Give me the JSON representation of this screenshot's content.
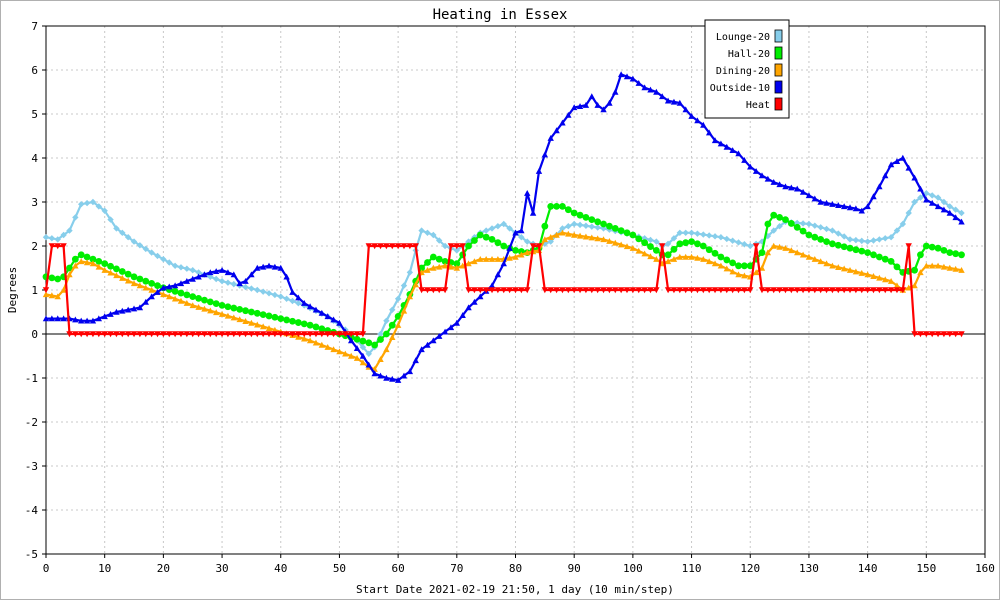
{
  "chart_data": {
    "type": "line",
    "title": "Heating in Essex",
    "xlabel": "Start Date 2021-02-19 21:50, 1 day (10 min/step)",
    "ylabel": "Degrees",
    "xlim": [
      0,
      160
    ],
    "ylim": [
      -5,
      7
    ],
    "x_ticks": [
      "0",
      "10",
      "20",
      "30",
      "40",
      "50",
      "60",
      "70",
      "80",
      "90",
      "100",
      "110",
      "120",
      "130",
      "140",
      "150",
      "160"
    ],
    "y_ticks": [
      "-5",
      "-4",
      "-3",
      "-2",
      "-1",
      "0",
      "1",
      "2",
      "3",
      "4",
      "5",
      "6",
      "7"
    ],
    "grid": true,
    "legend_position": "top-right",
    "series": [
      {
        "name": "Lounge-20",
        "color": "#87ceeb",
        "marker": "diamond",
        "points": [
          [
            0,
            2.2
          ],
          [
            2,
            2.15
          ],
          [
            4,
            2.35
          ],
          [
            6,
            2.95
          ],
          [
            8,
            3.0
          ],
          [
            10,
            2.8
          ],
          [
            12,
            2.4
          ],
          [
            15,
            2.1
          ],
          [
            18,
            1.85
          ],
          [
            20,
            1.7
          ],
          [
            22,
            1.55
          ],
          [
            25,
            1.45
          ],
          [
            28,
            1.3
          ],
          [
            30,
            1.2
          ],
          [
            33,
            1.1
          ],
          [
            36,
            1.0
          ],
          [
            40,
            0.85
          ],
          [
            44,
            0.65
          ],
          [
            48,
            0.4
          ],
          [
            50,
            0.2
          ],
          [
            52,
            0.0
          ],
          [
            54,
            -0.3
          ],
          [
            55,
            -0.45
          ],
          [
            56,
            -0.3
          ],
          [
            58,
            0.3
          ],
          [
            60,
            0.8
          ],
          [
            62,
            1.4
          ],
          [
            63,
            1.9
          ],
          [
            64,
            2.35
          ],
          [
            66,
            2.25
          ],
          [
            68,
            2.0
          ],
          [
            70,
            1.9
          ],
          [
            72,
            2.1
          ],
          [
            74,
            2.3
          ],
          [
            76,
            2.4
          ],
          [
            78,
            2.5
          ],
          [
            80,
            2.3
          ],
          [
            82,
            2.1
          ],
          [
            84,
            2.0
          ],
          [
            86,
            2.1
          ],
          [
            88,
            2.4
          ],
          [
            90,
            2.5
          ],
          [
            95,
            2.4
          ],
          [
            100,
            2.25
          ],
          [
            104,
            2.1
          ],
          [
            105,
            2.0
          ],
          [
            106,
            2.05
          ],
          [
            108,
            2.3
          ],
          [
            110,
            2.3
          ],
          [
            115,
            2.2
          ],
          [
            120,
            2.0
          ],
          [
            122,
            2.1
          ],
          [
            124,
            2.35
          ],
          [
            126,
            2.55
          ],
          [
            130,
            2.5
          ],
          [
            134,
            2.35
          ],
          [
            137,
            2.15
          ],
          [
            140,
            2.1
          ],
          [
            144,
            2.2
          ],
          [
            146,
            2.5
          ],
          [
            148,
            3.0
          ],
          [
            150,
            3.2
          ],
          [
            152,
            3.1
          ],
          [
            154,
            2.9
          ],
          [
            156,
            2.75
          ]
        ]
      },
      {
        "name": "Hall-20",
        "color": "#00ee00",
        "marker": "circle",
        "points": [
          [
            0,
            1.3
          ],
          [
            2,
            1.25
          ],
          [
            3,
            1.3
          ],
          [
            4,
            1.5
          ],
          [
            5,
            1.7
          ],
          [
            6,
            1.8
          ],
          [
            8,
            1.7
          ],
          [
            10,
            1.6
          ],
          [
            15,
            1.3
          ],
          [
            20,
            1.05
          ],
          [
            25,
            0.85
          ],
          [
            30,
            0.65
          ],
          [
            35,
            0.5
          ],
          [
            40,
            0.35
          ],
          [
            45,
            0.2
          ],
          [
            50,
            0.0
          ],
          [
            55,
            -0.2
          ],
          [
            56,
            -0.25
          ],
          [
            58,
            0.0
          ],
          [
            60,
            0.4
          ],
          [
            62,
            0.9
          ],
          [
            64,
            1.5
          ],
          [
            66,
            1.75
          ],
          [
            68,
            1.65
          ],
          [
            70,
            1.6
          ],
          [
            72,
            2.0
          ],
          [
            74,
            2.25
          ],
          [
            76,
            2.15
          ],
          [
            78,
            2.0
          ],
          [
            80,
            1.9
          ],
          [
            82,
            1.85
          ],
          [
            84,
            1.95
          ],
          [
            85,
            2.45
          ],
          [
            86,
            2.9
          ],
          [
            88,
            2.9
          ],
          [
            90,
            2.75
          ],
          [
            95,
            2.5
          ],
          [
            100,
            2.25
          ],
          [
            104,
            1.9
          ],
          [
            105,
            1.8
          ],
          [
            106,
            1.8
          ],
          [
            108,
            2.05
          ],
          [
            110,
            2.1
          ],
          [
            112,
            2.0
          ],
          [
            115,
            1.75
          ],
          [
            118,
            1.55
          ],
          [
            120,
            1.55
          ],
          [
            122,
            1.85
          ],
          [
            123,
            2.5
          ],
          [
            124,
            2.7
          ],
          [
            126,
            2.6
          ],
          [
            130,
            2.25
          ],
          [
            134,
            2.05
          ],
          [
            137,
            1.95
          ],
          [
            140,
            1.85
          ],
          [
            144,
            1.65
          ],
          [
            146,
            1.4
          ],
          [
            148,
            1.45
          ],
          [
            149,
            1.8
          ],
          [
            150,
            2.0
          ],
          [
            152,
            1.95
          ],
          [
            154,
            1.85
          ],
          [
            156,
            1.8
          ]
        ]
      },
      {
        "name": "Dining-20",
        "color": "#ffa500",
        "marker": "triangle",
        "points": [
          [
            0,
            0.9
          ],
          [
            2,
            0.85
          ],
          [
            3,
            1.0
          ],
          [
            4,
            1.35
          ],
          [
            5,
            1.55
          ],
          [
            6,
            1.65
          ],
          [
            8,
            1.6
          ],
          [
            10,
            1.45
          ],
          [
            15,
            1.15
          ],
          [
            20,
            0.9
          ],
          [
            25,
            0.65
          ],
          [
            30,
            0.45
          ],
          [
            35,
            0.25
          ],
          [
            40,
            0.05
          ],
          [
            45,
            -0.15
          ],
          [
            50,
            -0.4
          ],
          [
            53,
            -0.55
          ],
          [
            55,
            -0.75
          ],
          [
            56,
            -0.8
          ],
          [
            58,
            -0.35
          ],
          [
            60,
            0.2
          ],
          [
            62,
            0.85
          ],
          [
            64,
            1.4
          ],
          [
            66,
            1.5
          ],
          [
            68,
            1.55
          ],
          [
            70,
            1.5
          ],
          [
            72,
            1.6
          ],
          [
            74,
            1.7
          ],
          [
            78,
            1.7
          ],
          [
            80,
            1.75
          ],
          [
            82,
            1.85
          ],
          [
            84,
            1.9
          ],
          [
            85,
            2.15
          ],
          [
            86,
            2.2
          ],
          [
            88,
            2.3
          ],
          [
            90,
            2.25
          ],
          [
            95,
            2.15
          ],
          [
            100,
            1.95
          ],
          [
            104,
            1.7
          ],
          [
            105,
            1.6
          ],
          [
            106,
            1.65
          ],
          [
            108,
            1.75
          ],
          [
            110,
            1.75
          ],
          [
            112,
            1.7
          ],
          [
            115,
            1.55
          ],
          [
            118,
            1.35
          ],
          [
            120,
            1.3
          ],
          [
            122,
            1.5
          ],
          [
            123,
            1.85
          ],
          [
            124,
            2.0
          ],
          [
            126,
            1.95
          ],
          [
            130,
            1.75
          ],
          [
            134,
            1.55
          ],
          [
            137,
            1.45
          ],
          [
            140,
            1.35
          ],
          [
            144,
            1.2
          ],
          [
            146,
            1.0
          ],
          [
            148,
            1.1
          ],
          [
            149,
            1.4
          ],
          [
            150,
            1.55
          ],
          [
            152,
            1.55
          ],
          [
            154,
            1.5
          ],
          [
            156,
            1.45
          ]
        ]
      },
      {
        "name": "Outside-10",
        "color": "#0000ee",
        "marker": "triangle",
        "points": [
          [
            0,
            0.35
          ],
          [
            4,
            0.35
          ],
          [
            6,
            0.3
          ],
          [
            8,
            0.3
          ],
          [
            10,
            0.4
          ],
          [
            12,
            0.5
          ],
          [
            14,
            0.55
          ],
          [
            16,
            0.6
          ],
          [
            18,
            0.85
          ],
          [
            20,
            1.05
          ],
          [
            22,
            1.1
          ],
          [
            24,
            1.2
          ],
          [
            26,
            1.3
          ],
          [
            28,
            1.4
          ],
          [
            30,
            1.45
          ],
          [
            32,
            1.35
          ],
          [
            33,
            1.15
          ],
          [
            34,
            1.2
          ],
          [
            35,
            1.35
          ],
          [
            36,
            1.5
          ],
          [
            38,
            1.55
          ],
          [
            40,
            1.5
          ],
          [
            41,
            1.3
          ],
          [
            42,
            0.95
          ],
          [
            44,
            0.7
          ],
          [
            46,
            0.55
          ],
          [
            48,
            0.4
          ],
          [
            50,
            0.25
          ],
          [
            51,
            0.05
          ],
          [
            52,
            -0.15
          ],
          [
            54,
            -0.5
          ],
          [
            56,
            -0.9
          ],
          [
            58,
            -1.0
          ],
          [
            60,
            -1.05
          ],
          [
            62,
            -0.85
          ],
          [
            64,
            -0.35
          ],
          [
            66,
            -0.15
          ],
          [
            68,
            0.05
          ],
          [
            70,
            0.25
          ],
          [
            72,
            0.6
          ],
          [
            74,
            0.85
          ],
          [
            76,
            1.1
          ],
          [
            78,
            1.6
          ],
          [
            80,
            2.3
          ],
          [
            81,
            2.35
          ],
          [
            82,
            3.2
          ],
          [
            83,
            2.75
          ],
          [
            84,
            3.7
          ],
          [
            86,
            4.45
          ],
          [
            88,
            4.8
          ],
          [
            90,
            5.15
          ],
          [
            92,
            5.2
          ],
          [
            93,
            5.4
          ],
          [
            94,
            5.2
          ],
          [
            95,
            5.1
          ],
          [
            96,
            5.25
          ],
          [
            97,
            5.5
          ],
          [
            98,
            5.9
          ],
          [
            100,
            5.8
          ],
          [
            102,
            5.6
          ],
          [
            104,
            5.5
          ],
          [
            106,
            5.3
          ],
          [
            108,
            5.25
          ],
          [
            110,
            4.95
          ],
          [
            112,
            4.75
          ],
          [
            114,
            4.4
          ],
          [
            116,
            4.25
          ],
          [
            118,
            4.1
          ],
          [
            120,
            3.8
          ],
          [
            122,
            3.6
          ],
          [
            124,
            3.45
          ],
          [
            126,
            3.35
          ],
          [
            128,
            3.3
          ],
          [
            130,
            3.15
          ],
          [
            132,
            3.0
          ],
          [
            134,
            2.95
          ],
          [
            136,
            2.9
          ],
          [
            138,
            2.85
          ],
          [
            139,
            2.8
          ],
          [
            140,
            2.9
          ],
          [
            142,
            3.35
          ],
          [
            144,
            3.85
          ],
          [
            146,
            4.0
          ],
          [
            148,
            3.55
          ],
          [
            150,
            3.05
          ],
          [
            152,
            2.9
          ],
          [
            154,
            2.75
          ],
          [
            156,
            2.55
          ]
        ]
      },
      {
        "name": "Heat",
        "color": "#ff0000",
        "marker": "triangle-down",
        "points": [
          [
            0,
            1
          ],
          [
            1,
            2
          ],
          [
            3,
            2
          ],
          [
            4,
            0
          ],
          [
            54,
            0
          ],
          [
            55,
            2
          ],
          [
            63,
            2
          ],
          [
            64,
            1
          ],
          [
            68,
            1
          ],
          [
            69,
            2
          ],
          [
            71,
            2
          ],
          [
            72,
            1
          ],
          [
            82,
            1
          ],
          [
            83,
            2
          ],
          [
            84,
            2
          ],
          [
            85,
            1
          ],
          [
            104,
            1
          ],
          [
            105,
            2
          ],
          [
            106,
            1
          ],
          [
            120,
            1
          ],
          [
            121,
            2
          ],
          [
            122,
            1
          ],
          [
            146,
            1
          ],
          [
            147,
            2
          ],
          [
            148,
            0
          ],
          [
            156,
            0
          ]
        ]
      }
    ]
  }
}
